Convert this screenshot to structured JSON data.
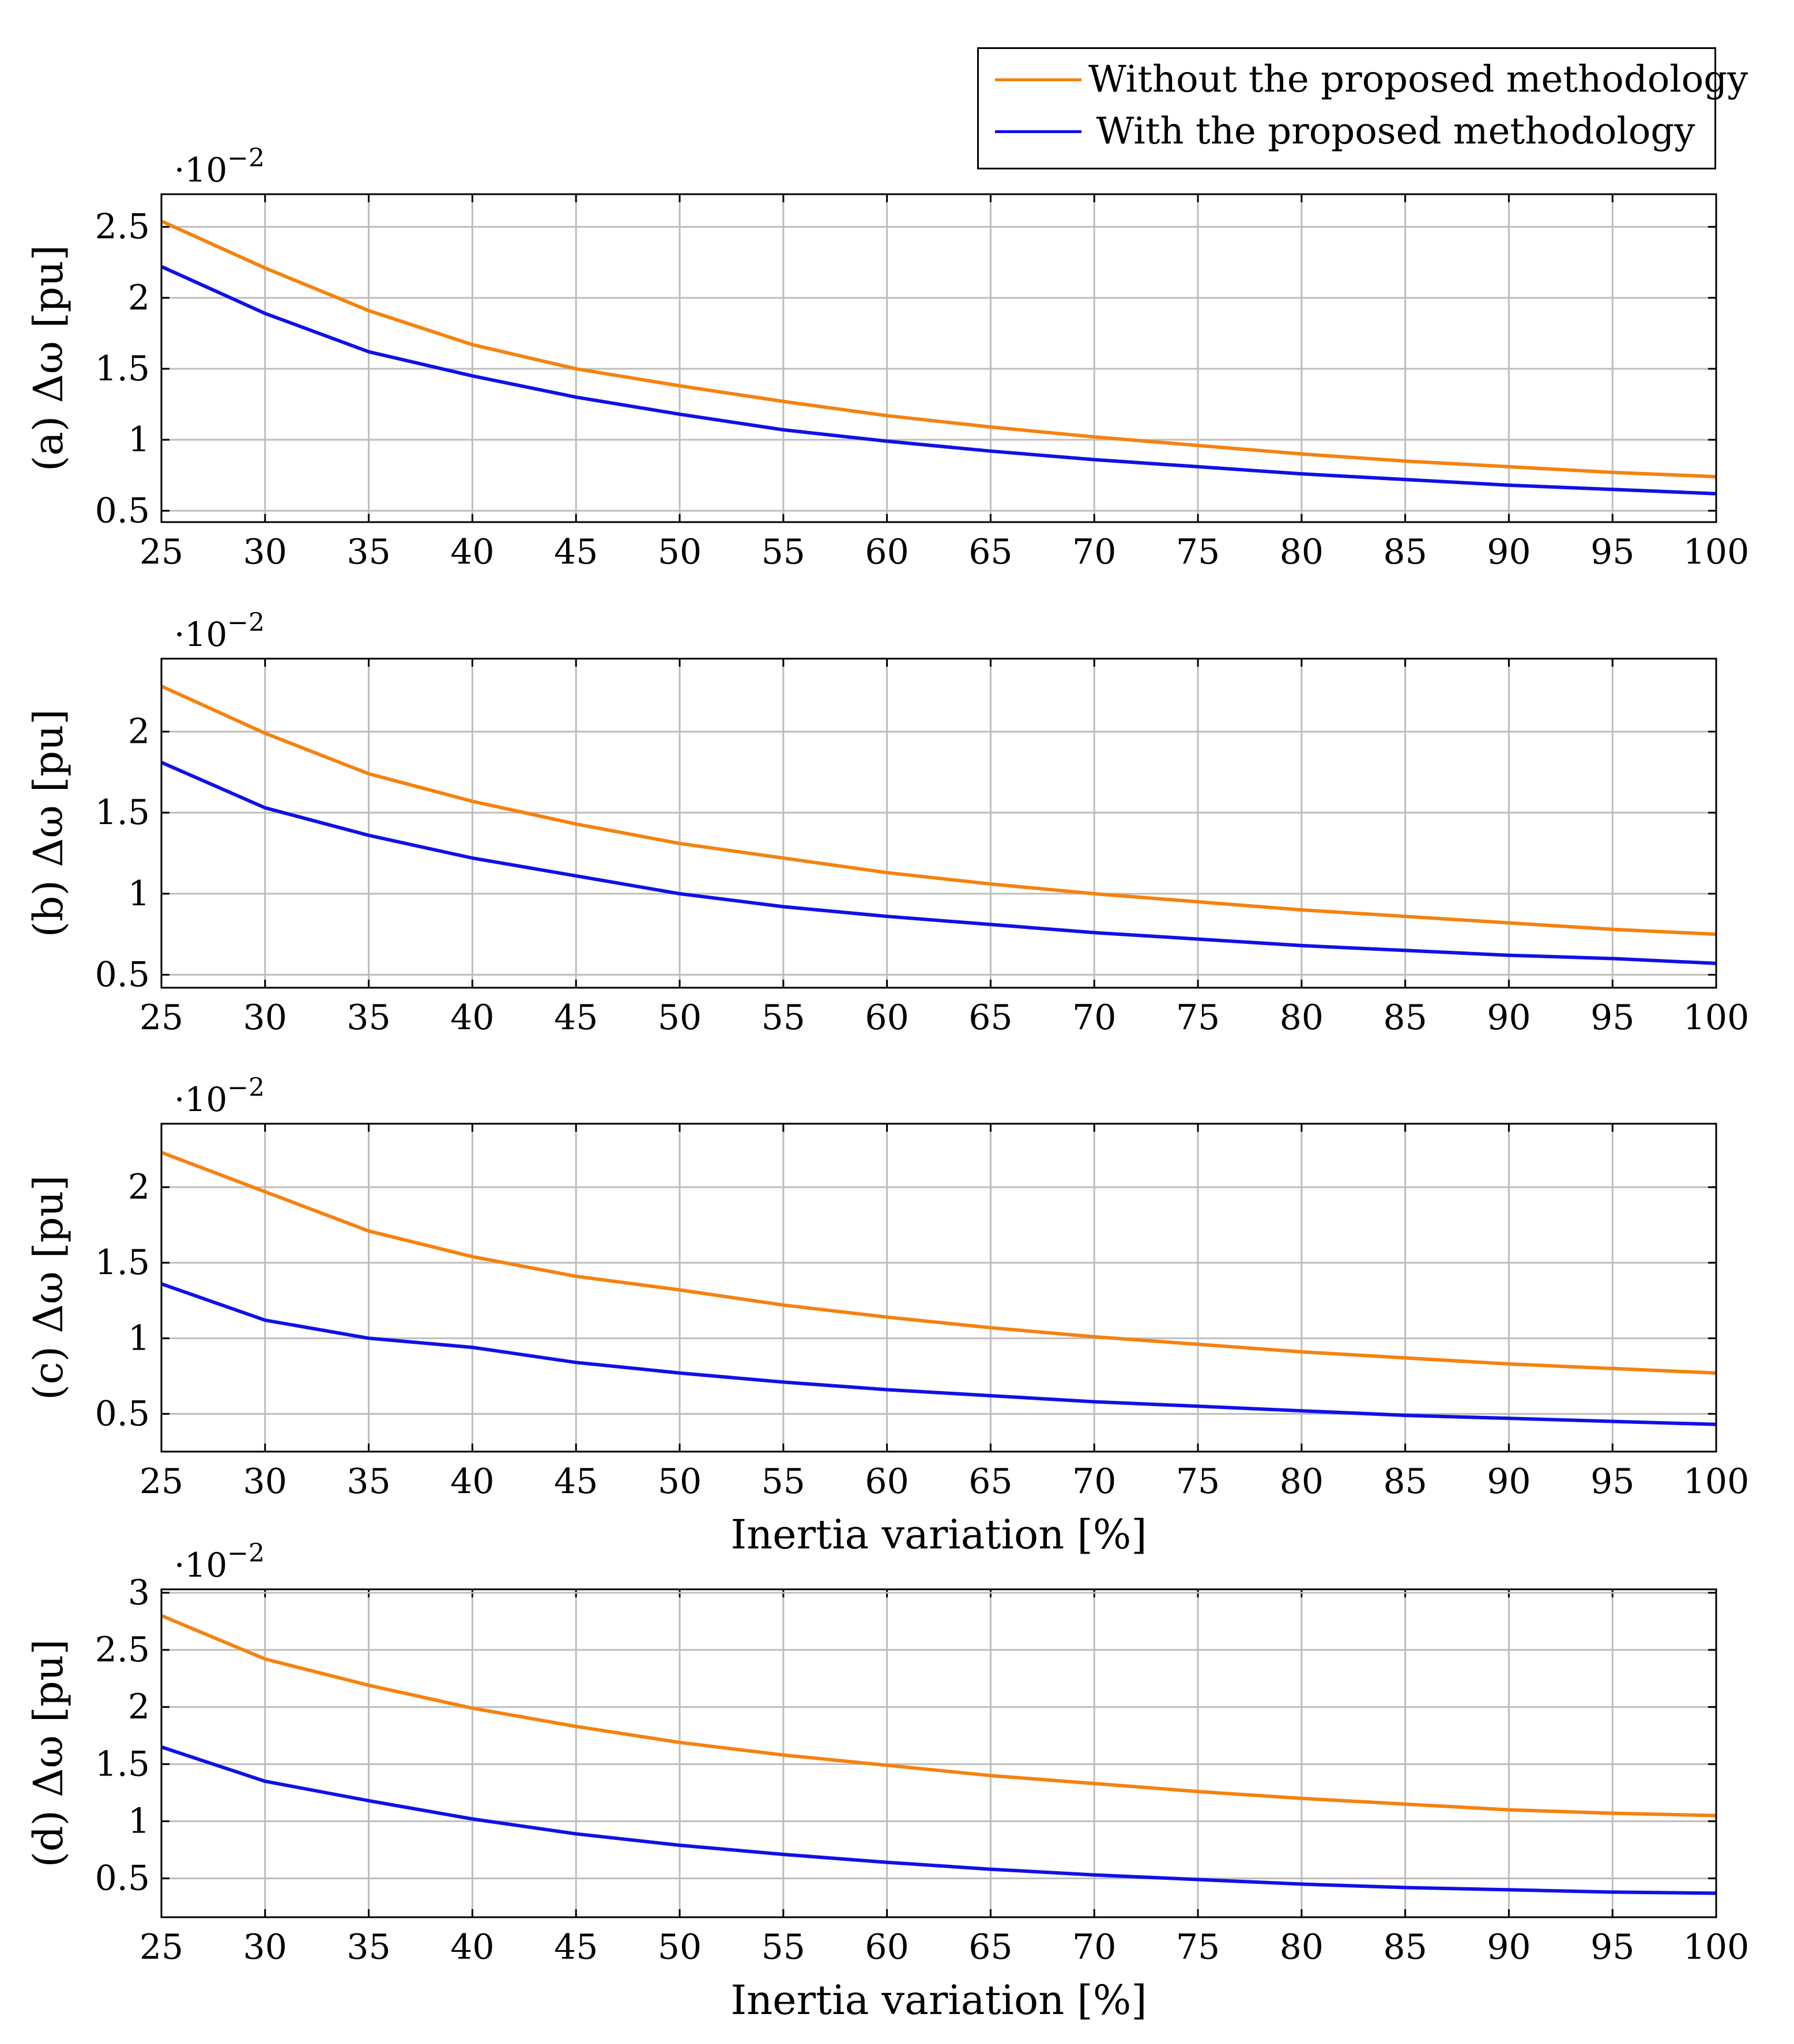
{
  "legend": {
    "without": "Without the proposed methodology",
    "with": "With the proposed methodology"
  },
  "colors": {
    "without": "#f5820f",
    "with": "#1010e6",
    "grid": "#bdbdbd",
    "axis": "#000000"
  },
  "chart_data": [
    {
      "type": "line",
      "panel": "a",
      "ylabel": "(a) Δω [pu]",
      "xlabel": "",
      "multiplier": "·10^−2",
      "x": [
        25,
        30,
        35,
        40,
        45,
        50,
        55,
        60,
        65,
        70,
        75,
        80,
        85,
        90,
        95,
        100
      ],
      "xlim": [
        25,
        100
      ],
      "ylim": [
        0.42,
        2.73
      ],
      "yticks": [
        0.5,
        1,
        1.5,
        2,
        2.5
      ],
      "ytick_labels": [
        "0.5",
        "1",
        "1.5",
        "2",
        "2.5"
      ],
      "series": [
        {
          "name": "Without the proposed methodology",
          "values": [
            2.54,
            2.21,
            1.91,
            1.67,
            1.5,
            1.38,
            1.27,
            1.17,
            1.09,
            1.02,
            0.96,
            0.9,
            0.85,
            0.81,
            0.77,
            0.74
          ]
        },
        {
          "name": "With the proposed methodology",
          "values": [
            2.22,
            1.89,
            1.62,
            1.45,
            1.3,
            1.18,
            1.07,
            0.99,
            0.92,
            0.86,
            0.81,
            0.76,
            0.72,
            0.68,
            0.65,
            0.62
          ]
        }
      ]
    },
    {
      "type": "line",
      "panel": "b",
      "ylabel": "(b) Δω [pu]",
      "xlabel": "",
      "multiplier": "·10^−2",
      "x": [
        25,
        30,
        35,
        40,
        45,
        50,
        55,
        60,
        65,
        70,
        75,
        80,
        85,
        90,
        95,
        100
      ],
      "xlim": [
        25,
        100
      ],
      "ylim": [
        0.42,
        2.45
      ],
      "yticks": [
        0.5,
        1,
        1.5,
        2
      ],
      "ytick_labels": [
        "0.5",
        "1",
        "1.5",
        "2"
      ],
      "series": [
        {
          "name": "Without the proposed methodology",
          "values": [
            2.28,
            1.99,
            1.74,
            1.57,
            1.43,
            1.31,
            1.22,
            1.13,
            1.06,
            1.0,
            0.95,
            0.9,
            0.86,
            0.82,
            0.78,
            0.75
          ]
        },
        {
          "name": "With the proposed methodology",
          "values": [
            1.81,
            1.53,
            1.36,
            1.22,
            1.11,
            1.0,
            0.92,
            0.86,
            0.81,
            0.76,
            0.72,
            0.68,
            0.65,
            0.62,
            0.6,
            0.57
          ]
        }
      ]
    },
    {
      "type": "line",
      "panel": "c",
      "ylabel": "(c) Δω [pu]",
      "xlabel": "Inertia variation [%]",
      "multiplier": "·10^−2",
      "x": [
        25,
        30,
        35,
        40,
        45,
        50,
        55,
        60,
        65,
        70,
        75,
        80,
        85,
        90,
        95,
        100
      ],
      "xlim": [
        25,
        100
      ],
      "ylim": [
        0.25,
        2.42
      ],
      "yticks": [
        0.5,
        1,
        1.5,
        2
      ],
      "ytick_labels": [
        "0.5",
        "1",
        "1.5",
        "2"
      ],
      "series": [
        {
          "name": "Without the proposed methodology",
          "values": [
            2.23,
            1.97,
            1.71,
            1.54,
            1.41,
            1.32,
            1.22,
            1.14,
            1.07,
            1.01,
            0.96,
            0.91,
            0.87,
            0.83,
            0.8,
            0.77
          ]
        },
        {
          "name": "With the proposed methodology",
          "values": [
            1.36,
            1.12,
            1.0,
            0.94,
            0.84,
            0.77,
            0.71,
            0.66,
            0.62,
            0.58,
            0.55,
            0.52,
            0.49,
            0.47,
            0.45,
            0.43
          ]
        }
      ]
    },
    {
      "type": "line",
      "panel": "d",
      "ylabel": "(d) Δω [pu]",
      "xlabel": "Inertia variation [%]",
      "multiplier": "·10^−2",
      "x": [
        25,
        30,
        35,
        40,
        45,
        50,
        55,
        60,
        65,
        70,
        75,
        80,
        85,
        90,
        95,
        100
      ],
      "xlim": [
        25,
        100
      ],
      "ylim": [
        0.16,
        3.03
      ],
      "yticks": [
        0.5,
        1,
        1.5,
        2,
        2.5,
        3
      ],
      "ytick_labels": [
        "0.5",
        "1",
        "1.5",
        "2",
        "2.5",
        "3"
      ],
      "series": [
        {
          "name": "Without the proposed methodology",
          "values": [
            2.8,
            2.42,
            2.19,
            1.99,
            1.83,
            1.69,
            1.58,
            1.49,
            1.4,
            1.33,
            1.26,
            1.2,
            1.15,
            1.1,
            1.07,
            1.05
          ]
        },
        {
          "name": "With the proposed methodology",
          "values": [
            1.65,
            1.35,
            1.18,
            1.02,
            0.89,
            0.79,
            0.71,
            0.64,
            0.58,
            0.53,
            0.49,
            0.45,
            0.42,
            0.4,
            0.38,
            0.37
          ]
        }
      ]
    }
  ]
}
